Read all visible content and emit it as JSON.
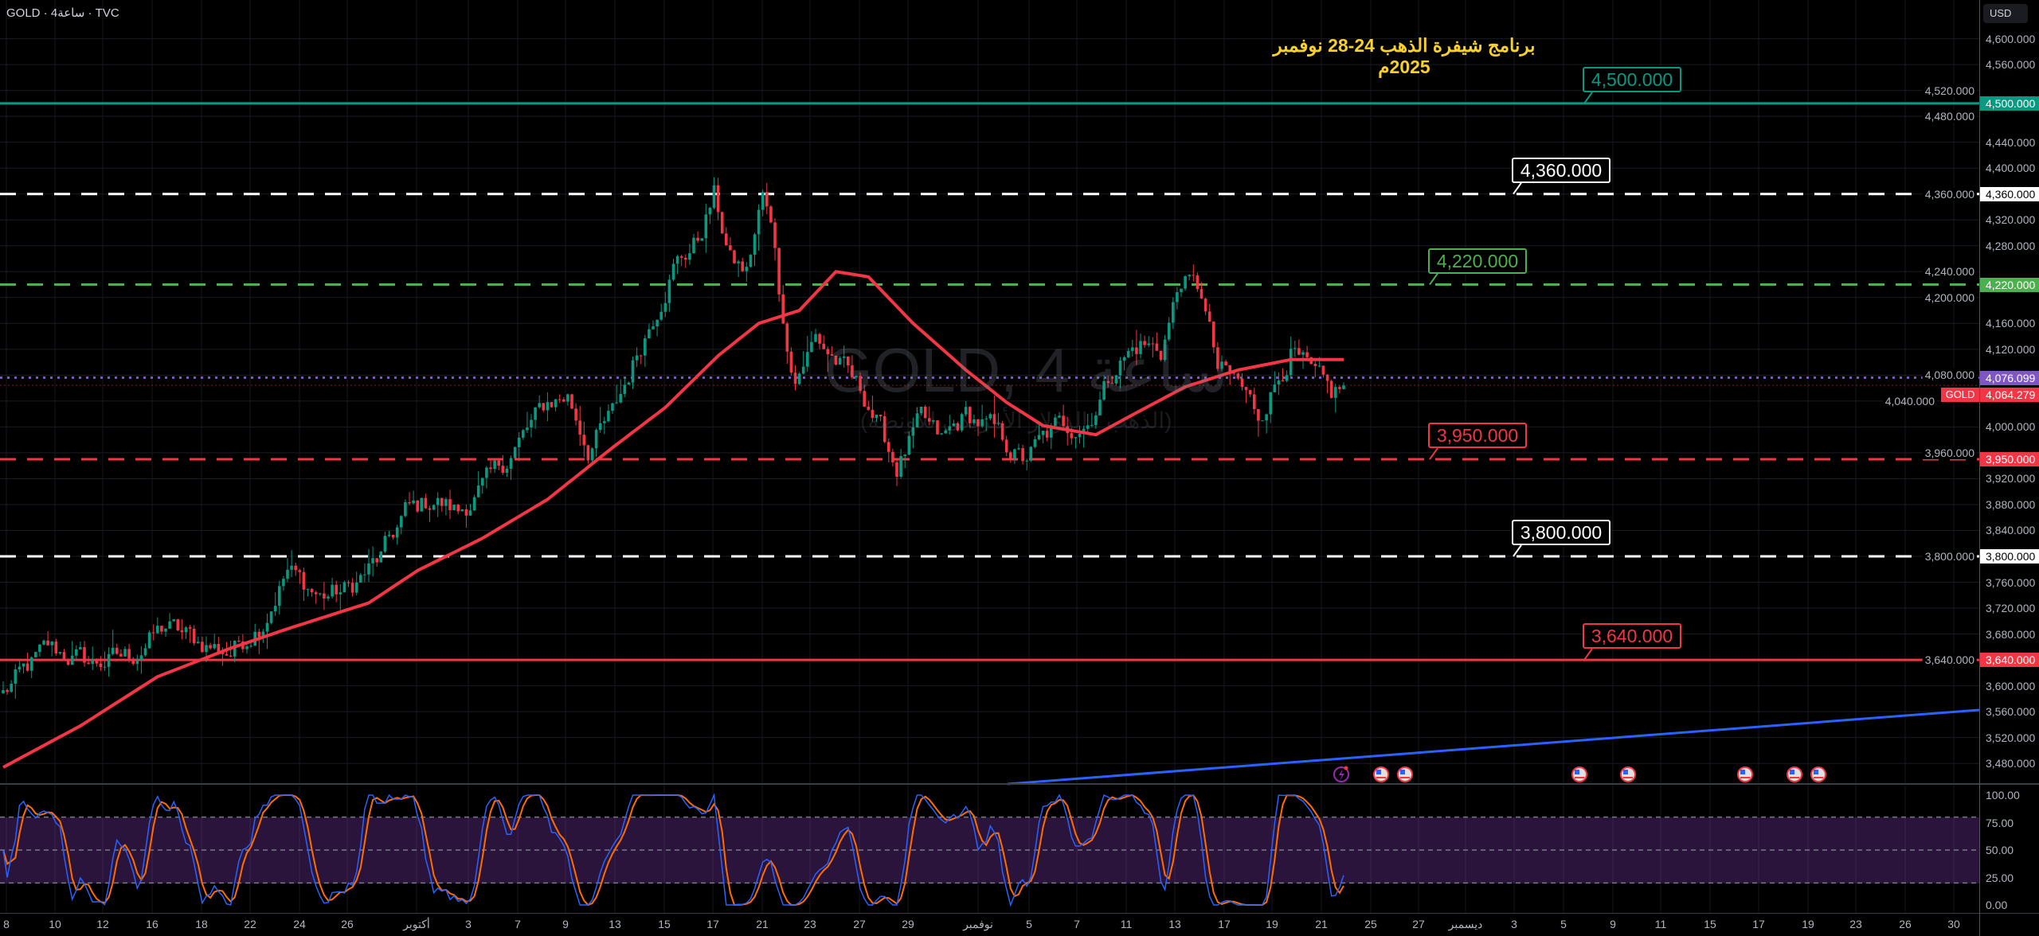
{
  "header": {
    "symbol_line": "GOLD · 4ساعة · TVC",
    "currency_button": "USD"
  },
  "title": "برنامج شيفرة الذهب 24-28 نوفمبر 2025م",
  "watermark": {
    "main": "GOLD, 4 ساعة",
    "sub": "(الذهب / الدولار الأمريكي للأونصة)"
  },
  "price_tags": {
    "current_label": "4,076.099",
    "current_color": "#7e57c2",
    "symbol_tag": "GOLD",
    "last_label": "4,064.279",
    "last_color": "#f23645"
  },
  "levels": [
    {
      "price": 4500,
      "label": "4,500.000",
      "axis_label": "4,500.000",
      "color": "#089981",
      "style": "solid"
    },
    {
      "price": 4360,
      "label": "4,360.000",
      "axis_label": "4,360.000",
      "color": "#ffffff",
      "style": "dashed"
    },
    {
      "price": 4220,
      "label": "4,220.000",
      "axis_label": "4,220.000",
      "color": "#4caf50",
      "style": "dashed"
    },
    {
      "price": 3950,
      "label": "3,950.000",
      "axis_label": "3,950.000",
      "color": "#f23645",
      "style": "dashed"
    },
    {
      "price": 3800,
      "label": "3,800.000",
      "axis_label": "3,800.000",
      "color": "#ffffff",
      "style": "dashed"
    },
    {
      "price": 3640,
      "label": "3,640.000",
      "axis_label": "3,640.000",
      "color": "#f23645",
      "style": "solid"
    }
  ],
  "oscillator_axis": [
    "100.00",
    "75.00",
    "50.00",
    "25.00",
    "0.00"
  ],
  "events": [
    "lightning-icon",
    "us-flag-icon",
    "us-flag-icon",
    "us-flag-icon",
    "us-flag-icon",
    "us-flag-icon",
    "us-flag-icon",
    "us-flag-icon"
  ],
  "chart_data": {
    "type": "candlestick",
    "title": "برنامج شيفرة الذهب 24-28 نوفمبر 2025م",
    "symbol": "GOLD",
    "timeframe": "4h",
    "currency": "USD",
    "ylim": [
      3460,
      4620
    ],
    "y_ticks": [
      "4,600.000",
      "4,560.000",
      "4,520.000",
      "4,480.000",
      "4,440.000",
      "4,400.000",
      "4,360.000",
      "4,320.000",
      "4,280.000",
      "4,240.000",
      "4,200.000",
      "4,160.000",
      "4,120.000",
      "4,080.000",
      "4,040.000",
      "4,000.000",
      "3,960.000",
      "3,920.000",
      "3,880.000",
      "3,840.000",
      "3,800.000",
      "3,760.000",
      "3,720.000",
      "3,680.000",
      "3,640.000",
      "3,600.000",
      "3,560.000",
      "3,520.000",
      "3,480.000"
    ],
    "x_ticks": [
      "8",
      "10",
      "12",
      "16",
      "18",
      "22",
      "24",
      "26",
      "أكتوبر",
      "3",
      "7",
      "9",
      "13",
      "15",
      "17",
      "21",
      "23",
      "27",
      "29",
      "نوفمبر",
      "5",
      "7",
      "11",
      "13",
      "17",
      "19",
      "21",
      "25",
      "27",
      "ديسمبر",
      "3",
      "5",
      "9",
      "11",
      "15",
      "17",
      "19",
      "23",
      "26",
      "30"
    ],
    "close_keypoints": [
      [
        0,
        3588
      ],
      [
        11,
        3658
      ],
      [
        22,
        3634
      ],
      [
        32,
        3648
      ],
      [
        40,
        3692
      ],
      [
        48,
        3668
      ],
      [
        56,
        3652
      ],
      [
        64,
        3702
      ],
      [
        70,
        3778
      ],
      [
        78,
        3738
      ],
      [
        85,
        3748
      ],
      [
        93,
        3798
      ],
      [
        99,
        3868
      ],
      [
        106,
        3888
      ],
      [
        112,
        3868
      ],
      [
        120,
        3918
      ],
      [
        126,
        3968
      ],
      [
        134,
        4038
      ],
      [
        139,
        4048
      ],
      [
        144,
        3968
      ],
      [
        150,
        4018
      ],
      [
        157,
        4128
      ],
      [
        165,
        4248
      ],
      [
        171,
        4288
      ],
      [
        175,
        4358
      ],
      [
        179,
        4258
      ],
      [
        183,
        4238
      ],
      [
        187,
        4358
      ],
      [
        190,
        4278
      ],
      [
        192,
        4158
      ],
      [
        195,
        4078
      ],
      [
        200,
        4138
      ],
      [
        207,
        4088
      ],
      [
        213,
        4038
      ],
      [
        220,
        3938
      ],
      [
        226,
        4008
      ],
      [
        231,
        3978
      ],
      [
        237,
        4018
      ],
      [
        243,
        3998
      ],
      [
        251,
        3948
      ],
      [
        259,
        3998
      ],
      [
        267,
        4008
      ],
      [
        274,
        4098
      ],
      [
        280,
        4128
      ],
      [
        285,
        4118
      ],
      [
        290,
        4228
      ],
      [
        295,
        4208
      ],
      [
        299,
        4088
      ],
      [
        304,
        4068
      ],
      [
        309,
        4018
      ],
      [
        314,
        4078
      ],
      [
        317,
        4118
      ],
      [
        322,
        4078
      ],
      [
        327,
        4048
      ],
      [
        330,
        4064.279
      ]
    ],
    "moving_average": {
      "color": "#f23645",
      "keypoints": [
        [
          0,
          3474
        ],
        [
          19,
          3538
        ],
        [
          38,
          3614
        ],
        [
          56,
          3658
        ],
        [
          70,
          3688
        ],
        [
          90,
          3728
        ],
        [
          102,
          3778
        ],
        [
          118,
          3828
        ],
        [
          134,
          3888
        ],
        [
          150,
          3968
        ],
        [
          163,
          4030
        ],
        [
          176,
          4110
        ],
        [
          186,
          4160
        ],
        [
          190,
          4168
        ],
        [
          196,
          4180
        ],
        [
          205,
          4240
        ],
        [
          213,
          4232
        ],
        [
          224,
          4160
        ],
        [
          237,
          4088
        ],
        [
          247,
          4038
        ],
        [
          256,
          4002
        ],
        [
          269,
          3988
        ],
        [
          279,
          4022
        ],
        [
          291,
          4062
        ],
        [
          304,
          4088
        ],
        [
          317,
          4104
        ],
        [
          330,
          4104
        ]
      ]
    },
    "trendline": {
      "color": "#2962ff",
      "from": [
        248,
        3450
      ],
      "to": [
        487,
        3565
      ]
    },
    "oscillator": {
      "type": "stoch-rsi",
      "range": [
        0,
        100
      ],
      "bands": [
        20,
        50,
        80
      ],
      "k_color": "#2962ff",
      "d_color": "#ff6d00"
    },
    "up_color": "#089981",
    "down_color": "#f23645"
  }
}
